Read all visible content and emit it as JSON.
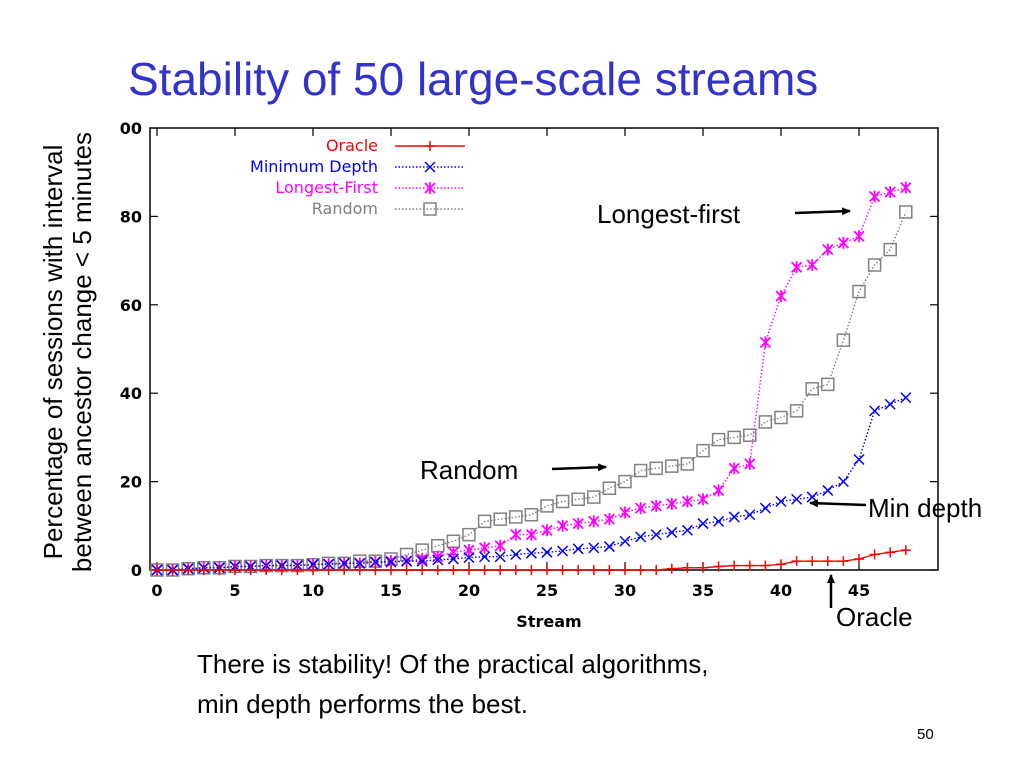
{
  "slide": {
    "title": "Stability of 50 large-scale streams",
    "ylabel_line1": "Percentage of sessions with interval",
    "ylabel_line2": "between ancestor change < 5 minutes",
    "caption": "There is stability! Of the practical algorithms,\nmin depth performs the best.",
    "page_number": "50"
  },
  "annotations": {
    "longest_first": "Longest-first",
    "random": "Random",
    "min_depth": "Min depth",
    "oracle": "Oracle"
  },
  "chart_data": {
    "type": "line",
    "xlabel": "Stream",
    "xlim": [
      0,
      50
    ],
    "ylim": [
      0,
      100
    ],
    "x_ticks": [
      0,
      5,
      10,
      15,
      20,
      25,
      30,
      35,
      40,
      45
    ],
    "y_ticks": [
      0,
      20,
      40,
      60,
      80
    ],
    "y_tick_labels": [
      "0",
      "20",
      "40",
      "60",
      "80"
    ],
    "y_top_label": "00",
    "legend_position": "top-left",
    "grid": false,
    "series": [
      {
        "name": "Oracle",
        "color": "#ff0000",
        "marker": "plus",
        "line": "solid",
        "x": [
          0,
          1,
          2,
          3,
          4,
          5,
          6,
          7,
          8,
          9,
          10,
          11,
          12,
          13,
          14,
          15,
          16,
          17,
          18,
          19,
          20,
          21,
          22,
          23,
          24,
          25,
          26,
          27,
          28,
          29,
          30,
          31,
          32,
          33,
          34,
          35,
          36,
          37,
          38,
          39,
          40,
          41,
          42,
          43,
          44,
          45,
          46,
          47,
          48
        ],
        "y": [
          0,
          0,
          0,
          0,
          0,
          0,
          0,
          0,
          0,
          0,
          0,
          0,
          0,
          0,
          0,
          0,
          0,
          0,
          0,
          0,
          0,
          0,
          0,
          0,
          0,
          0,
          0,
          0,
          0,
          0,
          0,
          0,
          0,
          0.3,
          0.5,
          0.5,
          0.8,
          1,
          1,
          1,
          1.3,
          2,
          2,
          2,
          2,
          2.5,
          3.5,
          4,
          4.5
        ]
      },
      {
        "name": "Minimum Depth",
        "color": "#0000ff",
        "marker": "x",
        "line": "dotted",
        "x": [
          0,
          1,
          2,
          3,
          4,
          5,
          6,
          7,
          8,
          9,
          10,
          11,
          12,
          13,
          14,
          15,
          16,
          17,
          18,
          19,
          20,
          21,
          22,
          23,
          24,
          25,
          26,
          27,
          28,
          29,
          30,
          31,
          32,
          33,
          34,
          35,
          36,
          37,
          38,
          39,
          40,
          41,
          42,
          43,
          44,
          45,
          46,
          47,
          48
        ],
        "y": [
          0,
          0,
          0.3,
          0.5,
          0.5,
          0.8,
          0.8,
          1,
          1,
          1,
          1.3,
          1.3,
          1.5,
          1.5,
          1.8,
          1.8,
          2,
          2,
          2.3,
          2.5,
          2.8,
          3,
          3,
          3.5,
          3.8,
          4,
          4.3,
          4.8,
          5,
          5.3,
          6.5,
          7.5,
          8,
          8.5,
          9,
          10.5,
          11,
          12,
          12.5,
          14,
          15.5,
          16,
          16.5,
          18,
          20,
          25,
          36,
          37.5,
          39
        ]
      },
      {
        "name": "Longest-First",
        "color": "#ff00ff",
        "marker": "star",
        "line": "dotted",
        "x": [
          0,
          1,
          2,
          3,
          4,
          5,
          6,
          7,
          8,
          9,
          10,
          11,
          12,
          13,
          14,
          15,
          16,
          17,
          18,
          19,
          20,
          21,
          22,
          23,
          24,
          25,
          26,
          27,
          28,
          29,
          30,
          31,
          32,
          33,
          34,
          35,
          36,
          37,
          38,
          39,
          40,
          41,
          42,
          43,
          44,
          45,
          46,
          47,
          48
        ],
        "y": [
          0,
          0,
          0.3,
          0.5,
          0.5,
          0.8,
          0.8,
          1,
          1,
          1,
          1.2,
          1.3,
          1.5,
          1.5,
          1.8,
          2,
          2,
          2.5,
          3,
          4,
          4.5,
          5,
          5.5,
          8,
          8,
          9,
          10,
          10.5,
          11,
          11.5,
          13,
          14,
          14.5,
          15,
          15.5,
          16,
          18,
          23,
          24,
          51.5,
          62,
          68.5,
          69,
          72.5,
          74,
          75.5,
          84.5,
          85.5,
          86.5
        ]
      },
      {
        "name": "Random",
        "color": "#808080",
        "marker": "square",
        "line": "dotted",
        "x": [
          0,
          1,
          2,
          3,
          4,
          5,
          6,
          7,
          8,
          9,
          10,
          11,
          12,
          13,
          14,
          15,
          16,
          17,
          18,
          19,
          20,
          21,
          22,
          23,
          24,
          25,
          26,
          27,
          28,
          29,
          30,
          31,
          32,
          33,
          34,
          35,
          36,
          37,
          38,
          39,
          40,
          41,
          42,
          43,
          44,
          45,
          46,
          47,
          48
        ],
        "y": [
          0,
          0,
          0.3,
          0.5,
          0.5,
          0.8,
          0.8,
          1,
          1,
          1,
          1.2,
          1.5,
          1.5,
          2,
          2,
          2.5,
          3.5,
          4.5,
          5.5,
          6.5,
          8,
          11,
          11.5,
          12,
          12.5,
          14.5,
          15.5,
          16,
          16.5,
          18.5,
          20,
          22.5,
          23,
          23.5,
          24,
          27,
          29.5,
          30,
          30.5,
          33.5,
          34.5,
          36,
          41,
          42,
          52,
          63,
          69,
          72.5,
          81
        ]
      }
    ]
  }
}
